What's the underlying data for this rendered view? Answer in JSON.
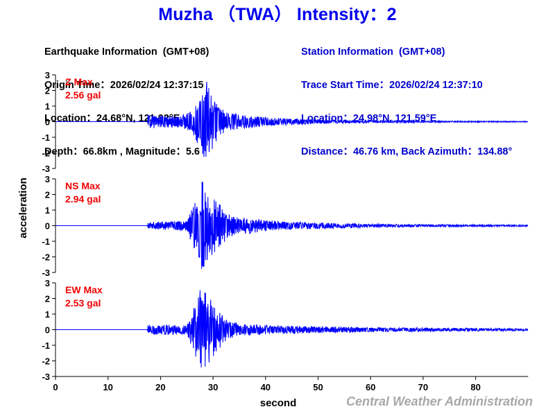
{
  "header": {
    "title": "Muzha （TWA） Intensity：2"
  },
  "earthquake_info": {
    "heading": "Earthquake Information  (GMT+08)",
    "origin_time": "Origin Time：2026/02/24 12:37:15",
    "location": "Location：24.68°N, 121.92°E",
    "depth_magnitude": "Depth：66.8km , Magnitude：5.6"
  },
  "station_info": {
    "heading": "Station Information  (GMT+08)",
    "trace_start": "Trace Start Time：2026/02/24 12:37:10",
    "location": "Location：24.98°N, 121.59°E",
    "distance_azimuth": "Distance：46.76 km, Back Azimuth：134.88°"
  },
  "footer": {
    "credit": "Central Weather Administration"
  },
  "colors": {
    "title": "#0000ee",
    "station_text": "#0000cc",
    "trace": "#0000ff",
    "max_label": "#ee0000",
    "credit": "#a8a8a8"
  },
  "chart_data": {
    "type": "line",
    "title": "Muzha （TWA） Intensity：2",
    "xlabel": "second",
    "ylabel": "acceleration",
    "xlim": [
      0,
      90
    ],
    "x_ticks": [
      0,
      10,
      20,
      30,
      40,
      50,
      60,
      70,
      80
    ],
    "ylim": [
      -3,
      3
    ],
    "y_ticks": [
      3,
      2,
      1,
      0,
      -1,
      -2,
      -3
    ],
    "grid": false,
    "legend": "none",
    "panels": [
      {
        "component": "Z",
        "label": "Z Max",
        "max_value": "2.56 gal",
        "max_gal": 2.56,
        "onset_s": 17.6,
        "peak_time_s": 28.8,
        "envelope": [
          [
            0,
            0.0
          ],
          [
            17.5,
            0.0
          ],
          [
            17.6,
            0.45
          ],
          [
            20,
            0.4
          ],
          [
            24,
            0.38
          ],
          [
            26,
            0.7
          ],
          [
            27,
            1.4
          ],
          [
            28,
            2.2
          ],
          [
            28.8,
            2.56
          ],
          [
            29.5,
            2.0
          ],
          [
            31,
            1.0
          ],
          [
            33,
            0.6
          ],
          [
            35,
            0.45
          ],
          [
            40,
            0.3
          ],
          [
            45,
            0.2
          ],
          [
            50,
            0.14
          ],
          [
            60,
            0.08
          ],
          [
            70,
            0.05
          ],
          [
            80,
            0.04
          ],
          [
            90,
            0.03
          ]
        ],
        "seed": 11
      },
      {
        "component": "NS",
        "label": "NS Max",
        "max_value": "2.94 gal",
        "max_gal": 2.94,
        "onset_s": 17.6,
        "peak_time_s": 28.0,
        "envelope": [
          [
            0,
            0.0
          ],
          [
            17.5,
            0.0
          ],
          [
            17.6,
            0.2
          ],
          [
            20,
            0.25
          ],
          [
            25,
            0.35
          ],
          [
            26.5,
            1.6
          ],
          [
            28,
            2.94
          ],
          [
            29,
            2.2
          ],
          [
            30,
            1.8
          ],
          [
            31,
            1.6
          ],
          [
            32.5,
            0.9
          ],
          [
            34,
            0.6
          ],
          [
            37,
            0.5
          ],
          [
            40,
            0.35
          ],
          [
            45,
            0.25
          ],
          [
            50,
            0.2
          ],
          [
            60,
            0.12
          ],
          [
            70,
            0.08
          ],
          [
            80,
            0.06
          ],
          [
            90,
            0.05
          ]
        ],
        "seed": 23
      },
      {
        "component": "EW",
        "label": "EW Max",
        "max_value": "2.53 gal",
        "max_gal": 2.53,
        "onset_s": 17.6,
        "peak_time_s": 27.5,
        "envelope": [
          [
            0,
            0.0
          ],
          [
            17.5,
            0.0
          ],
          [
            17.6,
            0.3
          ],
          [
            20,
            0.35
          ],
          [
            25,
            0.3
          ],
          [
            26,
            1.2
          ],
          [
            27.3,
            2.53
          ],
          [
            28.5,
            2.5
          ],
          [
            30,
            1.8
          ],
          [
            31,
            1.3
          ],
          [
            33,
            0.6
          ],
          [
            35,
            0.4
          ],
          [
            40,
            0.3
          ],
          [
            45,
            0.25
          ],
          [
            50,
            0.22
          ],
          [
            60,
            0.15
          ],
          [
            70,
            0.12
          ],
          [
            80,
            0.1
          ],
          [
            90,
            0.08
          ]
        ],
        "seed": 37
      }
    ]
  }
}
